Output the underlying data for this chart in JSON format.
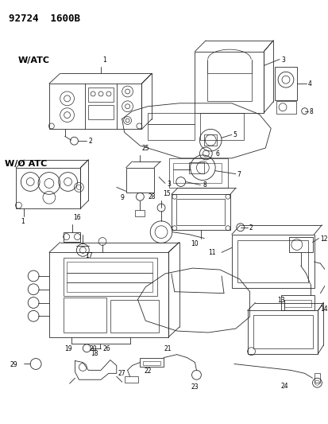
{
  "title": "92724  1600B",
  "bg_color": "#ffffff",
  "line_color": "#2a2a2a",
  "figsize": [
    4.14,
    5.33
  ],
  "dpi": 100
}
